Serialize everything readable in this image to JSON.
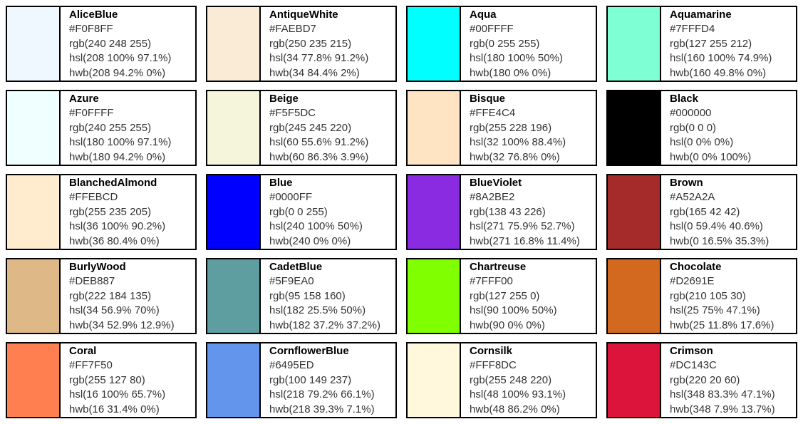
{
  "palette": {
    "colors": [
      {
        "name": "AliceBlue",
        "hex": "#F0F8FF",
        "rgb": "rgb(240 248 255)",
        "hsl": "hsl(208 100% 97.1%)",
        "hwb": "hwb(208 94.2% 0%)"
      },
      {
        "name": "AntiqueWhite",
        "hex": "#FAEBD7",
        "rgb": "rgb(250 235 215)",
        "hsl": "hsl(34 77.8% 91.2%)",
        "hwb": "hwb(34 84.4% 2%)"
      },
      {
        "name": "Aqua",
        "hex": "#00FFFF",
        "rgb": "rgb(0 255 255)",
        "hsl": "hsl(180 100% 50%)",
        "hwb": "hwb(180 0% 0%)"
      },
      {
        "name": "Aquamarine",
        "hex": "#7FFFD4",
        "rgb": "rgb(127 255 212)",
        "hsl": "hsl(160 100% 74.9%)",
        "hwb": "hwb(160 49.8% 0%)"
      },
      {
        "name": "Azure",
        "hex": "#F0FFFF",
        "rgb": "rgb(240 255 255)",
        "hsl": "hsl(180 100% 97.1%)",
        "hwb": "hwb(180 94.2% 0%)"
      },
      {
        "name": "Beige",
        "hex": "#F5F5DC",
        "rgb": "rgb(245 245 220)",
        "hsl": "hsl(60 55.6% 91.2%)",
        "hwb": "hwb(60 86.3% 3.9%)"
      },
      {
        "name": "Bisque",
        "hex": "#FFE4C4",
        "rgb": "rgb(255 228 196)",
        "hsl": "hsl(32 100% 88.4%)",
        "hwb": "hwb(32 76.8% 0%)"
      },
      {
        "name": "Black",
        "hex": "#000000",
        "rgb": "rgb(0 0 0)",
        "hsl": "hsl(0 0% 0%)",
        "hwb": "hwb(0 0% 100%)"
      },
      {
        "name": "BlanchedAlmond",
        "hex": "#FFEBCD",
        "rgb": "rgb(255 235 205)",
        "hsl": "hsl(36 100% 90.2%)",
        "hwb": "hwb(36 80.4% 0%)"
      },
      {
        "name": "Blue",
        "hex": "#0000FF",
        "rgb": "rgb(0 0 255)",
        "hsl": "hsl(240 100% 50%)",
        "hwb": "hwb(240 0% 0%)"
      },
      {
        "name": "BlueViolet",
        "hex": "#8A2BE2",
        "rgb": "rgb(138 43 226)",
        "hsl": "hsl(271 75.9% 52.7%)",
        "hwb": "hwb(271 16.8% 11.4%)"
      },
      {
        "name": "Brown",
        "hex": "#A52A2A",
        "rgb": "rgb(165 42 42)",
        "hsl": "hsl(0 59.4% 40.6%)",
        "hwb": "hwb(0 16.5% 35.3%)"
      },
      {
        "name": "BurlyWood",
        "hex": "#DEB887",
        "rgb": "rgb(222 184 135)",
        "hsl": "hsl(34 56.9% 70%)",
        "hwb": "hwb(34 52.9% 12.9%)"
      },
      {
        "name": "CadetBlue",
        "hex": "#5F9EA0",
        "rgb": "rgb(95 158 160)",
        "hsl": "hsl(182 25.5% 50%)",
        "hwb": "hwb(182 37.2% 37.2%)"
      },
      {
        "name": "Chartreuse",
        "hex": "#7FFF00",
        "rgb": "rgb(127 255 0)",
        "hsl": "hsl(90 100% 50%)",
        "hwb": "hwb(90 0% 0%)"
      },
      {
        "name": "Chocolate",
        "hex": "#D2691E",
        "rgb": "rgb(210 105 30)",
        "hsl": "hsl(25 75% 47.1%)",
        "hwb": "hwb(25 11.8% 17.6%)"
      },
      {
        "name": "Coral",
        "hex": "#FF7F50",
        "rgb": "rgb(255 127 80)",
        "hsl": "hsl(16 100% 65.7%)",
        "hwb": "hwb(16 31.4% 0%)"
      },
      {
        "name": "CornflowerBlue",
        "hex": "#6495ED",
        "rgb": "rgb(100 149 237)",
        "hsl": "hsl(218 79.2% 66.1%)",
        "hwb": "hwb(218 39.3% 7.1%)"
      },
      {
        "name": "Cornsilk",
        "hex": "#FFF8DC",
        "rgb": "rgb(255 248 220)",
        "hsl": "hsl(48 100% 93.1%)",
        "hwb": "hwb(48 86.2% 0%)"
      },
      {
        "name": "Crimson",
        "hex": "#DC143C",
        "rgb": "rgb(220 20 60)",
        "hsl": "hsl(348 83.3% 47.1%)",
        "hwb": "hwb(348 7.9% 13.7%)"
      }
    ],
    "border_color": "#000000",
    "value_text_color": "#333333"
  }
}
